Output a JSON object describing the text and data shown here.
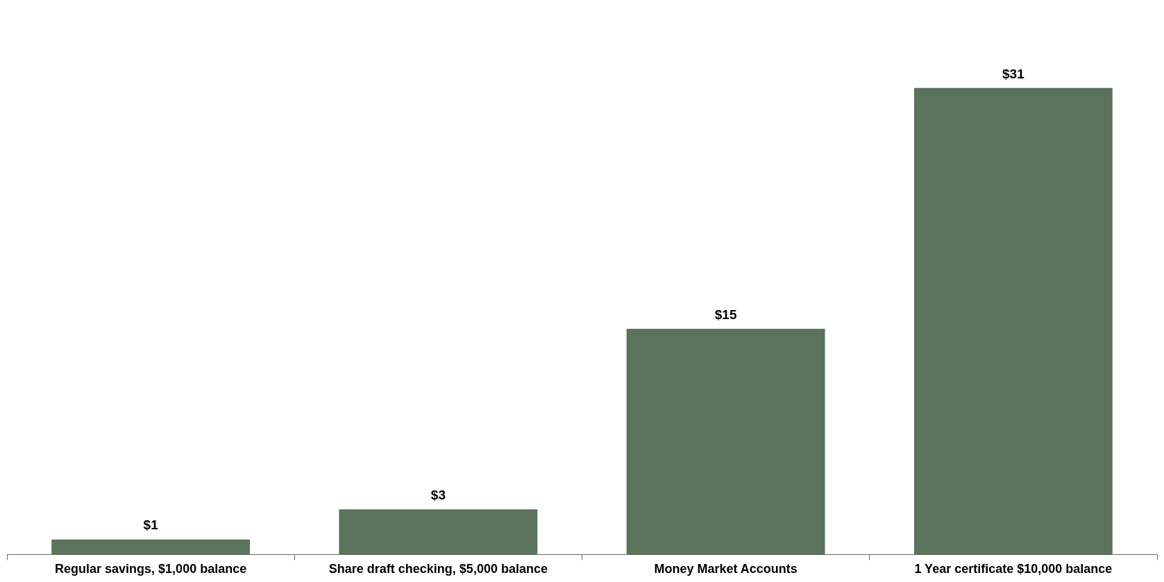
{
  "chart_data": {
    "type": "bar",
    "categories": [
      "Regular savings, $1,000 balance",
      "Share draft checking, $5,000 balance",
      "Money Market Accounts",
      "1 Year certificate $10,000 balance"
    ],
    "values": [
      1,
      3,
      15,
      31
    ],
    "value_labels": [
      "$1",
      "$3",
      "$15",
      "$31"
    ],
    "color": "#5a735a",
    "tick_labels": "x",
    "grid": false,
    "legend": false
  }
}
